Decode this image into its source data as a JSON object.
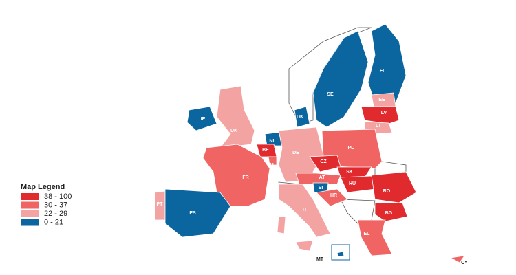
{
  "legend": {
    "title": "Map Legend",
    "items": [
      {
        "label": "38 - 100",
        "color": "#e02a2e"
      },
      {
        "label": "30 - 37",
        "color": "#f06464"
      },
      {
        "label": "22 - 29",
        "color": "#f4a3a3"
      },
      {
        "label": "0 - 21",
        "color": "#0b66a0"
      }
    ]
  },
  "regions": [
    {
      "code": "FI",
      "legend_item": 3
    },
    {
      "code": "SE",
      "legend_item": 3
    },
    {
      "code": "EE",
      "legend_item": 2
    },
    {
      "code": "LV",
      "legend_item": 0
    },
    {
      "code": "LT",
      "legend_item": 2
    },
    {
      "code": "DK",
      "legend_item": 3
    },
    {
      "code": "IE",
      "legend_item": 3
    },
    {
      "code": "UK",
      "legend_item": 2
    },
    {
      "code": "NL",
      "legend_item": 3
    },
    {
      "code": "BE",
      "legend_item": 0
    },
    {
      "code": "LU",
      "legend_item": 1
    },
    {
      "code": "DE",
      "legend_item": 2
    },
    {
      "code": "PL",
      "legend_item": 1
    },
    {
      "code": "CZ",
      "legend_item": 0
    },
    {
      "code": "SK",
      "legend_item": 0
    },
    {
      "code": "AT",
      "legend_item": 1
    },
    {
      "code": "HU",
      "legend_item": 0
    },
    {
      "code": "SI",
      "legend_item": 3
    },
    {
      "code": "HR",
      "legend_item": 1
    },
    {
      "code": "RO",
      "legend_item": 0
    },
    {
      "code": "BG",
      "legend_item": 0
    },
    {
      "code": "FR",
      "legend_item": 1
    },
    {
      "code": "PT",
      "legend_item": 2
    },
    {
      "code": "ES",
      "legend_item": 3
    },
    {
      "code": "IT",
      "legend_item": 2
    },
    {
      "code": "EL",
      "legend_item": 1
    },
    {
      "code": "MT",
      "legend_item": 3
    },
    {
      "code": "CY",
      "legend_item": 1
    }
  ]
}
